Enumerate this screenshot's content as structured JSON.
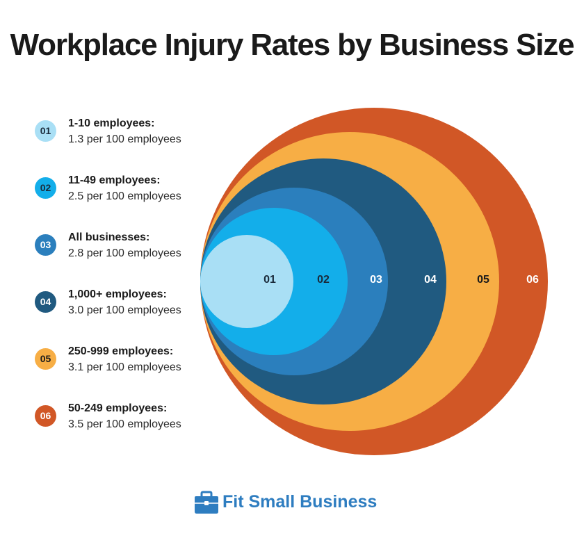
{
  "title": "Workplace Injury Rates by Business Size",
  "chart_data": {
    "type": "nested-circles",
    "title": "Workplace Injury Rates by Business Size",
    "unit": "per 100 employees",
    "items": [
      {
        "id": "01",
        "label": "1-10 employees:",
        "rate_text": "1.3 per 100 employees",
        "value": 1.3,
        "color": "#a9dff5",
        "badge_text_color": "#1a2a3a"
      },
      {
        "id": "02",
        "label": "11-49 employees:",
        "rate_text": "2.5 per 100 employees",
        "value": 2.5,
        "color": "#13aeea",
        "badge_text_color": "#1a2a3a"
      },
      {
        "id": "03",
        "label": "All businesses:",
        "rate_text": "2.8 per 100 employees",
        "value": 2.8,
        "color": "#2b7fbd",
        "badge_text_color": "#ffffff"
      },
      {
        "id": "04",
        "label": "1,000+ employees:",
        "rate_text": "3.0 per 100 employees",
        "value": 3.0,
        "color": "#205a80",
        "badge_text_color": "#ffffff"
      },
      {
        "id": "05",
        "label": "250-999 employees:",
        "rate_text": "3.1 per 100 employees",
        "value": 3.1,
        "color": "#f7ae45",
        "badge_text_color": "#1a1a1a"
      },
      {
        "id": "06",
        "label": "50-249 employees:",
        "rate_text": "3.5 per 100 employees",
        "value": 3.5,
        "color": "#d15726",
        "badge_text_color": "#ffffff"
      }
    ]
  },
  "brand": {
    "name": "Fit Small Business",
    "icon": "briefcase-icon",
    "color": "#2e7dc0"
  }
}
